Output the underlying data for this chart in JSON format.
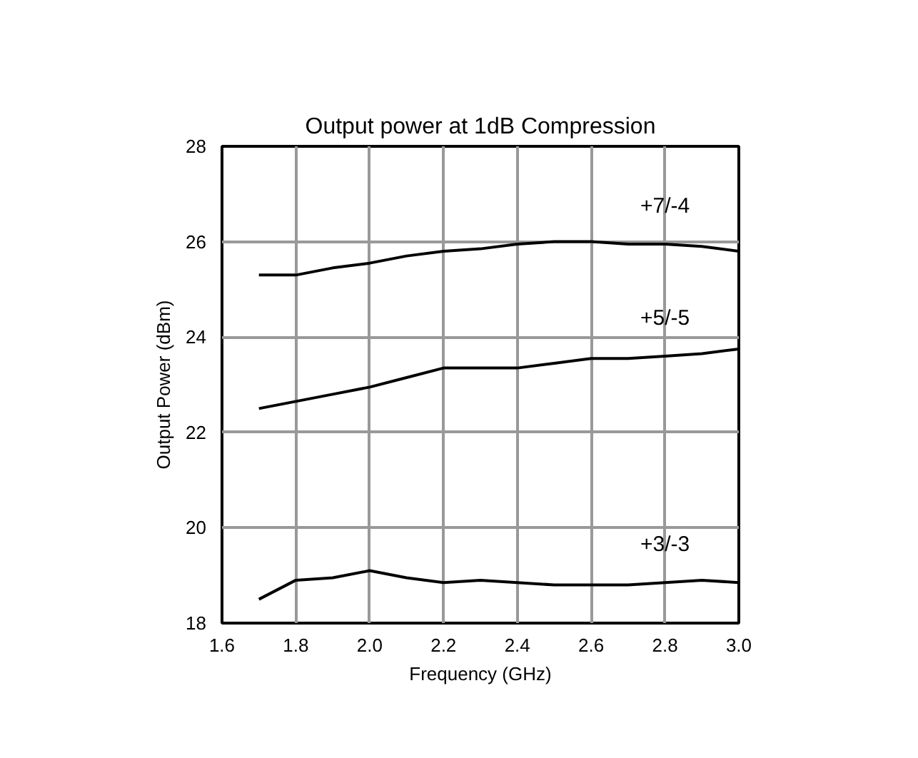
{
  "chart_data": {
    "type": "line",
    "title": "Output power at 1dB Compression",
    "xlabel": "Frequency (GHz)",
    "ylabel": "Output Power (dBm)",
    "x": [
      1.7,
      1.8,
      1.9,
      2.0,
      2.1,
      2.2,
      2.3,
      2.4,
      2.5,
      2.6,
      2.7,
      2.8,
      2.9,
      3.0
    ],
    "series": [
      {
        "name": "+7/-4",
        "color": "#000000",
        "values": [
          25.3,
          25.3,
          25.45,
          25.55,
          25.7,
          25.8,
          25.85,
          25.95,
          26.0,
          26.0,
          25.95,
          25.95,
          25.9,
          25.8
        ]
      },
      {
        "name": "+5/-5",
        "color": "#000000",
        "values": [
          22.5,
          22.65,
          22.8,
          22.95,
          23.15,
          23.35,
          23.35,
          23.35,
          23.45,
          23.55,
          23.55,
          23.6,
          23.65,
          23.75
        ]
      },
      {
        "name": "+3/-3",
        "color": "#000000",
        "values": [
          18.5,
          18.9,
          18.95,
          19.1,
          18.95,
          18.85,
          18.9,
          18.85,
          18.8,
          18.8,
          18.8,
          18.85,
          18.9,
          18.85
        ]
      }
    ],
    "xlim": [
      1.6,
      3.0
    ],
    "ylim": [
      18,
      28
    ],
    "xticks": [
      1.6,
      1.8,
      {
        "value": 2.0,
        "label": "2.0"
      },
      2.2,
      2.4,
      2.6,
      2.8,
      {
        "value": 3.0,
        "label": "3.0"
      }
    ],
    "yticks": [
      18,
      20,
      22,
      24,
      26,
      28
    ],
    "grid": true,
    "marker": "none",
    "line_style": "solid"
  }
}
